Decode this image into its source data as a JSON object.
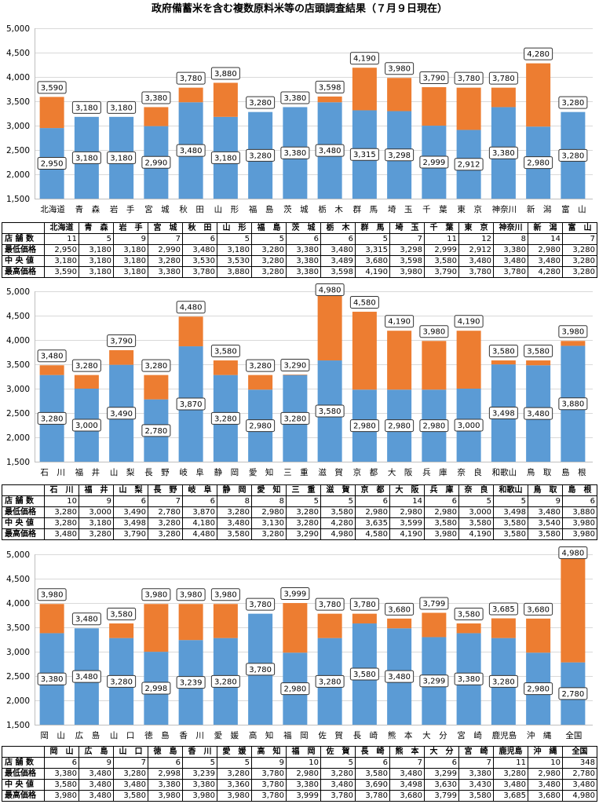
{
  "title": "政府備蓄米を含む複数原料米等の店頭調査結果（７月９日現在）",
  "colors": {
    "min_segment": "#5B9BD5",
    "range_segment": "#ED7D31",
    "gridline": "#D9D9D9",
    "axis": "#BFBFBF",
    "label_border": "#333333"
  },
  "table_row_labels": {
    "store_count": "店 舗 数",
    "min_price": "最低価格",
    "median_price": "中 央 値",
    "max_price": "最高価格"
  },
  "chart_data": [
    {
      "type": "bar",
      "stacked": true,
      "grid": true,
      "ylim": [
        1500,
        5000
      ],
      "yticks": [
        5000,
        4500,
        4000,
        3500,
        3000,
        2500,
        2000,
        1500
      ],
      "categories": [
        "北海道",
        "青　森",
        "岩　手",
        "宮　城",
        "秋　田",
        "山　形",
        "福　島",
        "茨　城",
        "栃　木",
        "群　馬",
        "埼　玉",
        "千　葉",
        "東　京",
        "神奈川",
        "新　潟",
        "富　山"
      ],
      "store_count": [
        11,
        5,
        9,
        7,
        6,
        5,
        5,
        6,
        6,
        5,
        7,
        11,
        12,
        8,
        14,
        7
      ],
      "min_price": [
        2950,
        3180,
        3180,
        2990,
        3480,
        3180,
        3280,
        3380,
        3480,
        3315,
        3298,
        2999,
        2912,
        3380,
        2980,
        3280
      ],
      "median_price": [
        3180,
        3180,
        3180,
        3280,
        3530,
        3530,
        3280,
        3380,
        3489,
        3680,
        3598,
        3580,
        3480,
        3480,
        3480,
        3280
      ],
      "max_price": [
        3590,
        3180,
        3180,
        3380,
        3780,
        3880,
        3280,
        3380,
        3598,
        4190,
        3980,
        3790,
        3780,
        3780,
        4280,
        3280
      ]
    },
    {
      "type": "bar",
      "stacked": true,
      "grid": true,
      "ylim": [
        1500,
        5000
      ],
      "yticks": [
        5000,
        4500,
        4000,
        3500,
        3000,
        2500,
        2000,
        1500
      ],
      "categories": [
        "石　川",
        "福　井",
        "山　梨",
        "長　野",
        "岐　阜",
        "静　岡",
        "愛　知",
        "三　重",
        "滋　賀",
        "京　都",
        "大　阪",
        "兵　庫",
        "奈　良",
        "和歌山",
        "鳥　取",
        "島　根"
      ],
      "store_count": [
        10,
        9,
        6,
        7,
        6,
        8,
        8,
        5,
        5,
        6,
        14,
        6,
        5,
        5,
        9,
        6
      ],
      "min_price": [
        3280,
        3000,
        3490,
        2780,
        3870,
        3280,
        2980,
        3280,
        3580,
        2980,
        2980,
        2980,
        3000,
        3498,
        3480,
        3880
      ],
      "median_price": [
        3280,
        3180,
        3498,
        3280,
        4180,
        3480,
        3130,
        3280,
        4280,
        3635,
        3599,
        3580,
        3580,
        3580,
        3540,
        3980
      ],
      "max_price": [
        3480,
        3280,
        3790,
        3280,
        4480,
        3580,
        3280,
        3290,
        4980,
        4580,
        4190,
        3980,
        4190,
        3580,
        3580,
        3980
      ]
    },
    {
      "type": "bar",
      "stacked": true,
      "grid": true,
      "ylim": [
        1500,
        5000
      ],
      "yticks": [
        5000,
        4500,
        4000,
        3500,
        3000,
        2500,
        2000,
        1500
      ],
      "categories": [
        "岡　山",
        "広　島",
        "山　口",
        "徳　島",
        "香　川",
        "愛　媛",
        "高　知",
        "福　岡",
        "佐　賀",
        "長　崎",
        "熊　本",
        "大　分",
        "宮　崎",
        "鹿児島",
        "沖　縄",
        "全国"
      ],
      "store_count": [
        6,
        9,
        7,
        6,
        5,
        5,
        9,
        10,
        5,
        6,
        7,
        6,
        7,
        11,
        10,
        348
      ],
      "min_price": [
        3380,
        3480,
        3280,
        2998,
        3239,
        3280,
        3780,
        2980,
        3280,
        3580,
        3480,
        3299,
        3380,
        3280,
        2980,
        2780
      ],
      "median_price": [
        3580,
        3480,
        3480,
        3380,
        3380,
        3360,
        3780,
        3380,
        3480,
        3690,
        3498,
        3630,
        3430,
        3480,
        3480,
        3480
      ],
      "max_price": [
        3980,
        3480,
        3580,
        3980,
        3980,
        3980,
        3780,
        3999,
        3780,
        3780,
        3680,
        3799,
        3580,
        3685,
        3680,
        4980
      ]
    }
  ]
}
